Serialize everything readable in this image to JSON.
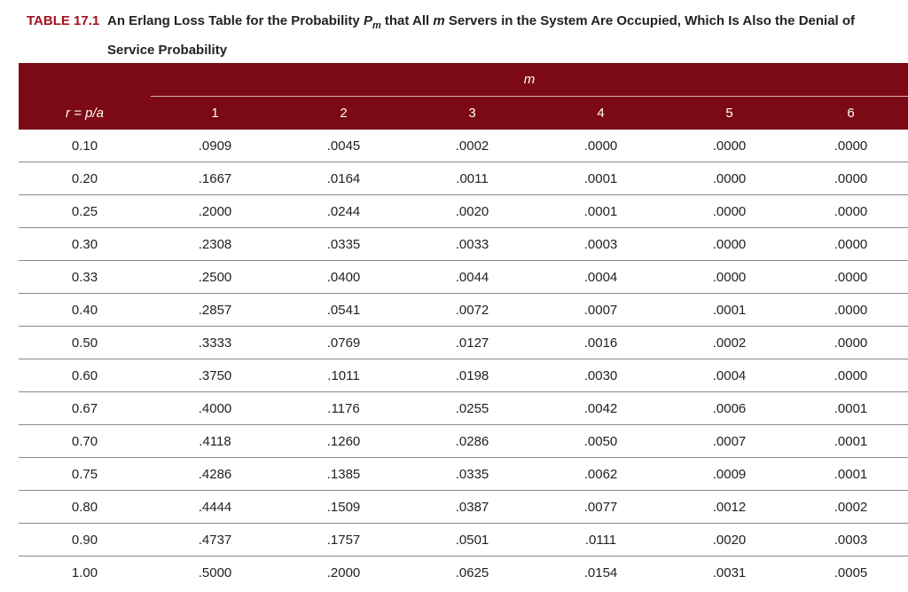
{
  "caption": {
    "label": "TABLE 17.1",
    "parts": [
      "An Erlang Loss Table for the Probability ",
      "P",
      "m",
      " that All ",
      "m",
      " Servers in the System Are Occupied, Which Is Also the Denial of Service Probability"
    ]
  },
  "table": {
    "group_header": "m",
    "row_header": "r = p/a",
    "columns": [
      "1",
      "2",
      "3",
      "4",
      "5",
      "6"
    ],
    "rows": [
      [
        "0.10",
        ".0909",
        ".0045",
        ".0002",
        ".0000",
        ".0000",
        ".0000"
      ],
      [
        "0.20",
        ".1667",
        ".0164",
        ".0011",
        ".0001",
        ".0000",
        ".0000"
      ],
      [
        "0.25",
        ".2000",
        ".0244",
        ".0020",
        ".0001",
        ".0000",
        ".0000"
      ],
      [
        "0.30",
        ".2308",
        ".0335",
        ".0033",
        ".0003",
        ".0000",
        ".0000"
      ],
      [
        "0.33",
        ".2500",
        ".0400",
        ".0044",
        ".0004",
        ".0000",
        ".0000"
      ],
      [
        "0.40",
        ".2857",
        ".0541",
        ".0072",
        ".0007",
        ".0001",
        ".0000"
      ],
      [
        "0.50",
        ".3333",
        ".0769",
        ".0127",
        ".0016",
        ".0002",
        ".0000"
      ],
      [
        "0.60",
        ".3750",
        ".1011",
        ".0198",
        ".0030",
        ".0004",
        ".0000"
      ],
      [
        "0.67",
        ".4000",
        ".1176",
        ".0255",
        ".0042",
        ".0006",
        ".0001"
      ],
      [
        "0.70",
        ".4118",
        ".1260",
        ".0286",
        ".0050",
        ".0007",
        ".0001"
      ],
      [
        "0.75",
        ".4286",
        ".1385",
        ".0335",
        ".0062",
        ".0009",
        ".0001"
      ],
      [
        "0.80",
        ".4444",
        ".1509",
        ".0387",
        ".0077",
        ".0012",
        ".0002"
      ],
      [
        "0.90",
        ".4737",
        ".1757",
        ".0501",
        ".0111",
        ".0020",
        ".0003"
      ],
      [
        "1.00",
        ".5000",
        ".2000",
        ".0625",
        ".0154",
        ".0031",
        ".0005"
      ]
    ]
  }
}
